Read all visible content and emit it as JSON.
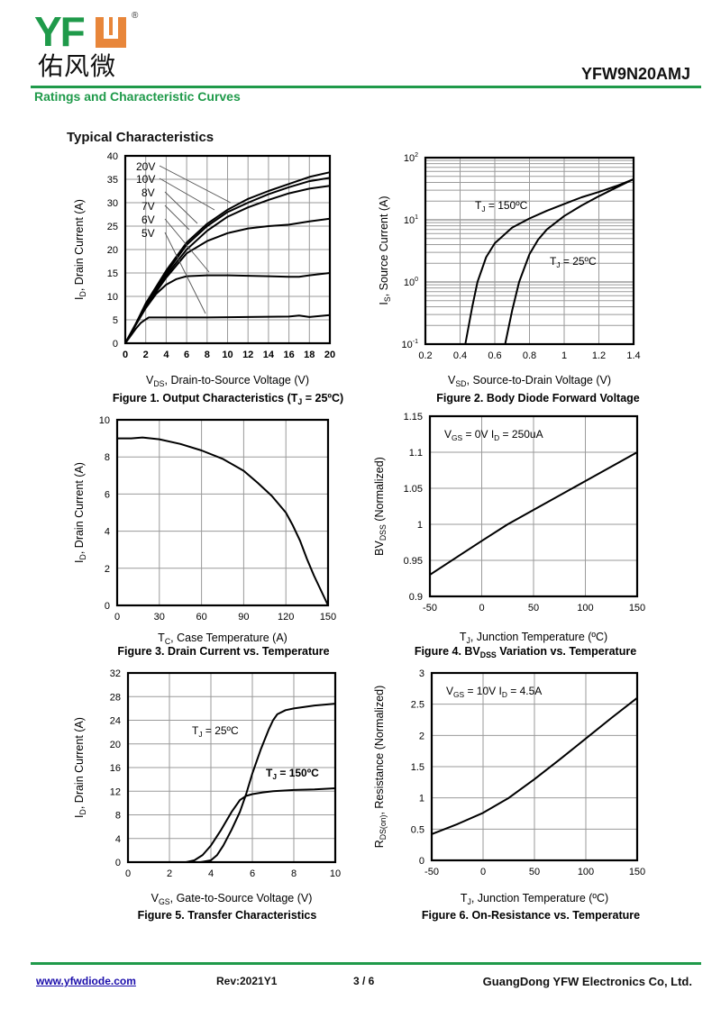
{
  "header": {
    "logo_text": "YFW",
    "logo_cn": "佑风微",
    "logo_reg": "®",
    "part_number": "YFW9N20AMJ",
    "section_title": "Ratings and Characteristic Curves",
    "subtitle": "Typical Characteristics",
    "brand_green": "#1f9a4a",
    "brand_orange": "#e8863a"
  },
  "footer": {
    "website": "www.yfwdiode.com",
    "revision": "Rev:2021Y1",
    "page": "3 / 6",
    "company": "GuangDong YFW Electronics Co, Ltd."
  },
  "chart_data": [
    {
      "id": "fig1",
      "type": "line",
      "title": "Figure 1. Output Characteristics (T",
      "title_sub": "J",
      "title_tail": " = 25ºC)",
      "xlabel": "V",
      "xlabel_sub": "DS",
      "xlabel_tail": ", Drain-to-Source Voltage (V)",
      "ylabel": "I",
      "ylabel_sub": "D",
      "ylabel_tail": ", Drain Current (A)",
      "xlim": [
        0,
        20
      ],
      "ylim": [
        0,
        40
      ],
      "xticks": [
        "0",
        "2",
        "4",
        "6",
        "8",
        "10",
        "12",
        "14",
        "16",
        "18",
        "20"
      ],
      "yticks": [
        "0",
        "5",
        "10",
        "15",
        "20",
        "25",
        "30",
        "35",
        "40"
      ],
      "grid": true,
      "series": [
        {
          "name": "20V",
          "x": [
            0,
            1,
            2,
            4,
            6,
            8,
            10,
            12,
            14,
            16,
            18,
            20
          ],
          "y": [
            0,
            4,
            8.5,
            15.5,
            21.5,
            25.5,
            28.5,
            30.8,
            32.5,
            34,
            35.5,
            36.5
          ]
        },
        {
          "name": "10V",
          "x": [
            0,
            1,
            2,
            4,
            6,
            8,
            10,
            12,
            14,
            16,
            18,
            20
          ],
          "y": [
            0,
            4,
            8.3,
            15,
            21,
            25,
            28,
            30,
            31.8,
            33.3,
            34.6,
            35.3
          ]
        },
        {
          "name": "8V",
          "x": [
            0,
            1,
            2,
            4,
            6,
            8,
            10,
            12,
            14,
            16,
            18,
            20
          ],
          "y": [
            0,
            4,
            8,
            14.5,
            20,
            24,
            27,
            29,
            30.6,
            32,
            33,
            33.6
          ]
        },
        {
          "name": "7V",
          "x": [
            0,
            1,
            2,
            4,
            6,
            8,
            10,
            12,
            14,
            16,
            18,
            20
          ],
          "y": [
            0,
            3.8,
            7.8,
            14,
            19.2,
            21.8,
            23.5,
            24.5,
            25,
            25.3,
            26,
            26.6
          ]
        },
        {
          "name": "6V",
          "x": [
            0,
            1,
            2,
            3,
            4,
            5,
            5.5,
            6,
            8,
            10,
            12,
            14,
            16,
            17,
            18,
            20
          ],
          "y": [
            0,
            3.8,
            7.5,
            10.5,
            12.5,
            13.7,
            14,
            14.3,
            14.5,
            14.5,
            14.4,
            14.3,
            14.2,
            14.2,
            14.5,
            15
          ]
        },
        {
          "name": "5V",
          "x": [
            0,
            1,
            1.5,
            2,
            2.3,
            4,
            8,
            12,
            16,
            17,
            18,
            20
          ],
          "y": [
            0,
            3,
            4.3,
            5.1,
            5.5,
            5.5,
            5.5,
            5.6,
            5.7,
            5.9,
            5.6,
            6
          ]
        }
      ],
      "legend_labels": [
        "20V",
        "10V",
        "8V",
        "7V",
        "6V",
        "5V"
      ]
    },
    {
      "id": "fig2",
      "type": "line",
      "yscale": "log",
      "title": "Figure 2. Body Diode Forward Voltage",
      "xlabel": "V",
      "xlabel_sub": "SD",
      "xlabel_tail": ", Source-to-Drain Voltage (V)",
      "ylabel": "I",
      "ylabel_sub": "S",
      "ylabel_tail": ", Source Current (A)",
      "xlim": [
        0.2,
        1.4
      ],
      "ylim": [
        0.1,
        100
      ],
      "xticks": [
        "0.2",
        "0.4",
        "0.6",
        "0.8",
        "1",
        "1.2",
        "1.4"
      ],
      "yticks": [
        {
          "base": "10",
          "exp": "-1"
        },
        {
          "base": "10",
          "exp": "0"
        },
        {
          "base": "10",
          "exp": "1"
        },
        {
          "base": "10",
          "exp": "2"
        }
      ],
      "grid": true,
      "series": [
        {
          "name": "T_J = 150ºC",
          "label_main": "T",
          "label_sub": "J",
          "label_tail": " = 150ºC",
          "x": [
            0.43,
            0.47,
            0.5,
            0.55,
            0.6,
            0.7,
            0.8,
            0.9,
            1.0,
            1.1,
            1.2,
            1.3,
            1.4
          ],
          "y": [
            0.1,
            0.4,
            1.0,
            2.5,
            4.2,
            7.5,
            10.5,
            14,
            18,
            23,
            28,
            35,
            45
          ]
        },
        {
          "name": "T_J = 25ºC",
          "label_main": "T",
          "label_sub": "J",
          "label_tail": " = 25ºC",
          "x": [
            0.66,
            0.7,
            0.74,
            0.8,
            0.85,
            0.9,
            1.0,
            1.1,
            1.2,
            1.3,
            1.4
          ],
          "y": [
            0.1,
            0.35,
            1.0,
            2.8,
            4.8,
            7,
            11.5,
            17,
            24,
            33,
            45
          ]
        }
      ]
    },
    {
      "id": "fig3",
      "type": "line",
      "title": "Figure 3. Drain Current vs. Temperature",
      "xlabel": "T",
      "xlabel_sub": "C",
      "xlabel_tail": ", Case Temperature (A)",
      "ylabel": ", Drain Current (A)",
      "ylabel_overlay": "I",
      "ylabel_overlay_sub": "D",
      "xlim": [
        0,
        150
      ],
      "ylim": [
        0,
        10
      ],
      "xticks": [
        "0",
        "30",
        "60",
        "90",
        "120",
        "150"
      ],
      "yticks": [
        "0",
        "2",
        "4",
        "6",
        "8",
        "10"
      ],
      "grid": true,
      "series": [
        {
          "name": "ID",
          "x": [
            0,
            10,
            18,
            30,
            45,
            60,
            75,
            90,
            100,
            110,
            120,
            125,
            130,
            135,
            140,
            145,
            150
          ],
          "y": [
            9,
            9,
            9.05,
            8.95,
            8.7,
            8.35,
            7.9,
            7.25,
            6.6,
            5.9,
            5.0,
            4.3,
            3.5,
            2.5,
            1.6,
            0.8,
            0
          ]
        }
      ]
    },
    {
      "id": "fig4",
      "type": "line",
      "title": "Figure 4. BV",
      "title_sub": "DSS",
      "title_tail": " Variation vs. Temperature",
      "xlabel": "T",
      "xlabel_sub": "J",
      "xlabel_tail": ", Junction Temperature (ºC)",
      "ylabel": "BV",
      "ylabel_sub": "DSS",
      "ylabel_tail": " (Normalized)",
      "annotation": {
        "a": "V",
        "a_sub": "GS",
        "b": " = 0V I",
        "b_sub": "D",
        "c": " = 250uA"
      },
      "xlim": [
        -50,
        150
      ],
      "ylim": [
        0.9,
        1.15
      ],
      "xticks": [
        "-50",
        "0",
        "50",
        "100",
        "150"
      ],
      "yticks": [
        "0.9",
        "0.95",
        "1",
        "1.05",
        "1.1",
        "1.15"
      ],
      "grid": true,
      "series": [
        {
          "name": "BVDSS",
          "x": [
            -50,
            0,
            25,
            50,
            100,
            150
          ],
          "y": [
            0.93,
            0.977,
            1.0,
            1.02,
            1.06,
            1.1
          ]
        }
      ]
    },
    {
      "id": "fig5",
      "type": "line",
      "title": "Figure 5. Transfer Characteristics",
      "xlabel": "V",
      "xlabel_sub": "GS",
      "xlabel_tail": ", Gate-to-Source Voltage (V)",
      "ylabel": "I",
      "ylabel_sub": "D",
      "ylabel_tail": ", Drain Current (A)",
      "xlim": [
        0,
        10
      ],
      "ylim": [
        0,
        32
      ],
      "xticks": [
        "0",
        "2",
        "4",
        "6",
        "8",
        "10"
      ],
      "yticks": [
        "0",
        "4",
        "8",
        "12",
        "16",
        "20",
        "24",
        "28",
        "32"
      ],
      "grid": true,
      "series": [
        {
          "name": "T_J = 25ºC",
          "label_main": "T",
          "label_sub": "J",
          "label_tail": " = 25ºC",
          "x": [
            0,
            3.5,
            4,
            4.3,
            4.6,
            5,
            5.4,
            5.7,
            6,
            6.4,
            6.8,
            7,
            7.2,
            7.6,
            8,
            9,
            10
          ],
          "y": [
            0,
            0,
            0.3,
            1.2,
            2.8,
            5.5,
            8.5,
            11.5,
            15,
            19,
            22.5,
            24,
            25,
            25.7,
            26,
            26.5,
            26.8
          ]
        },
        {
          "name": "T_J = 150ºC",
          "label_main": "T",
          "label_sub": "J",
          "label_tail": " = 150ºC",
          "x": [
            0,
            2.8,
            3.2,
            3.6,
            4,
            4.5,
            5,
            5.4,
            5.7,
            6,
            6.5,
            7,
            8,
            9,
            10
          ],
          "y": [
            0,
            0,
            0.3,
            1.2,
            2.8,
            5.5,
            8.5,
            10.5,
            11.2,
            11.5,
            11.8,
            12,
            12.2,
            12.3,
            12.5
          ]
        }
      ]
    },
    {
      "id": "fig6",
      "type": "line",
      "title": "Figure 6. On-Resistance vs. Temperature",
      "xlabel": "T",
      "xlabel_sub": "J",
      "xlabel_tail": ", Junction Temperature (ºC)",
      "ylabel": "R",
      "ylabel_sub": "DS(on)",
      "ylabel_tail": ", Resistance (Normalized)",
      "annotation": {
        "a": "V",
        "a_sub": "GS",
        "b": " = 10V I",
        "b_sub": "D",
        "c": " = 4.5A"
      },
      "xlim": [
        -50,
        150
      ],
      "ylim": [
        0,
        3
      ],
      "xticks": [
        "-50",
        "0",
        "50",
        "100",
        "150"
      ],
      "yticks": [
        "0",
        "0.5",
        "1",
        "1.5",
        "2",
        "2.5",
        "3"
      ],
      "grid": true,
      "series": [
        {
          "name": "RDS(on)",
          "x": [
            -50,
            -25,
            0,
            25,
            50,
            75,
            100,
            125,
            150
          ],
          "y": [
            0.42,
            0.58,
            0.76,
            1.0,
            1.3,
            1.62,
            1.95,
            2.28,
            2.6
          ]
        }
      ]
    }
  ]
}
